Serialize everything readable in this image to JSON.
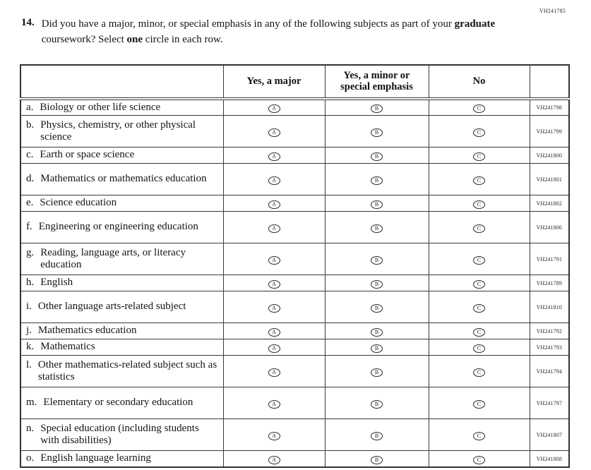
{
  "form_code": "VH241785",
  "question": {
    "number": "14.",
    "text_part1": "Did you have a major, minor, or special emphasis in any of the following subjects as part of your ",
    "bold1": "graduate",
    "text_part2": " coursework? Select ",
    "bold2": "one",
    "text_part3": " circle in each row."
  },
  "table": {
    "header": {
      "major": "Yes, a major",
      "minor": "Yes, a minor or special emphasis",
      "no": "No"
    },
    "options": [
      "A",
      "B",
      "C"
    ],
    "rows": [
      {
        "prefix": "a.",
        "label": "Biology or other life science",
        "code": "VH241798"
      },
      {
        "prefix": "b.",
        "label": "Physics, chemistry, or other physical science",
        "code": "VH241799"
      },
      {
        "prefix": "c.",
        "label": "Earth or space science",
        "code": "VH241800"
      },
      {
        "prefix": "d.",
        "label": "Mathematics or mathematics education",
        "code": "VH241801"
      },
      {
        "prefix": "e.",
        "label": "Science education",
        "code": "VH241802"
      },
      {
        "prefix": "f.",
        "label": "Engineering or engineering education",
        "code": "VH241806"
      },
      {
        "prefix": "g.",
        "label": "Reading, language arts, or literacy education",
        "code": "VH241791"
      },
      {
        "prefix": "h.",
        "label": "English",
        "code": "VH241789"
      },
      {
        "prefix": "i.",
        "label": "Other language arts-related subject",
        "code": "VH241810"
      },
      {
        "prefix": "j.",
        "label": "Mathematics education",
        "code": "VH241792"
      },
      {
        "prefix": "k.",
        "label": "Mathematics",
        "code": "VH241793"
      },
      {
        "prefix": "l.",
        "label": "Other mathematics-related subject such as statistics",
        "code": "VH241794"
      },
      {
        "prefix": "m.",
        "label": "Elementary or secondary education",
        "code": "VH241797"
      },
      {
        "prefix": "n.",
        "label": "Special education (including students with disabilities)",
        "code": "VH241807"
      },
      {
        "prefix": "o.",
        "label": "English language learning",
        "code": "VH241808"
      }
    ]
  }
}
